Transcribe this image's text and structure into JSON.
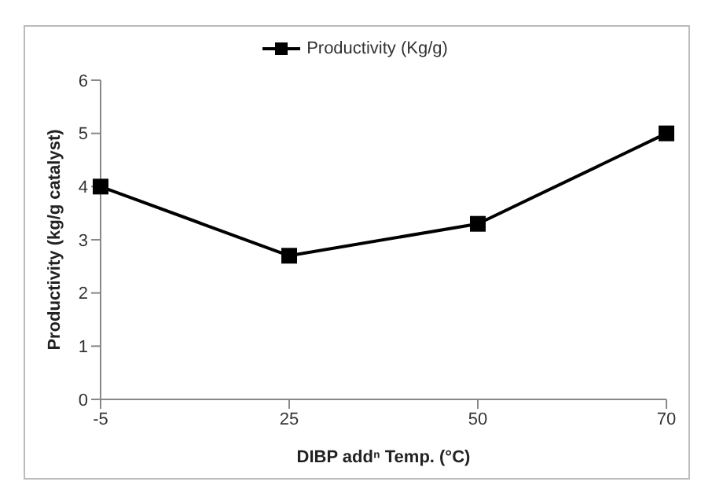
{
  "chart_data": {
    "type": "line",
    "xlabel": "DIBP addⁿ Temp. (°C)",
    "ylabel": "Productivity (kg/g catalyst)",
    "categories": [
      "-5",
      "25",
      "50",
      "70"
    ],
    "series": [
      {
        "name": "Productivity (Kg/g)",
        "color": "#000000",
        "values": [
          4,
          2.7,
          3.3,
          5
        ]
      }
    ],
    "ylim": [
      0,
      6
    ],
    "yticks": [
      0,
      1,
      2,
      3,
      4,
      5,
      6
    ],
    "legend": "top",
    "marker": "square",
    "line_style": "solid",
    "grid": false
  }
}
